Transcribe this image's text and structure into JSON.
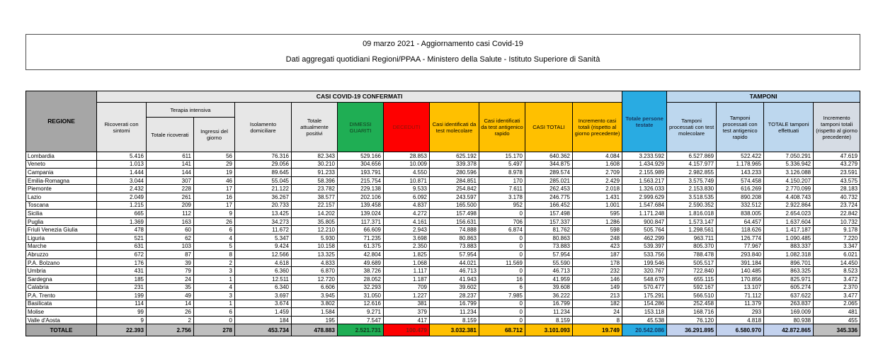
{
  "title": {
    "line1": "09 marzo 2021 - Aggiornamento casi Covid-19",
    "line2": "Dati aggregati quotidiani Regioni/PPAA - Ministero della Salute - Istituto Superiore di Sanità"
  },
  "colors": {
    "header_gray": "#a6a6a6",
    "header_light_gray": "#e7e7e7",
    "green": "#1fae54",
    "red": "#fe0000",
    "yellow": "#ffc000",
    "cyan": "#29abe2",
    "light_blue": "#bdd7ee",
    "gray_blue": "#d6dce4",
    "total_silver": "#bfbfbf"
  },
  "table": {
    "region_header": "REGIONE",
    "groups": {
      "confermati": "CASI COVID-19 CONFERMATI",
      "tamponi": "TAMPONI"
    },
    "headers": {
      "ricoverati": "Ricoverati con sintomi",
      "terapia_intensiva": "Terapia intensiva",
      "totale_ricoverati": "Totale ricoverati",
      "ingressi_giorno": "Ingressi del giorno",
      "isolamento": "Isolamento domiciliare",
      "attualmente_positivi": "Totale attualmente positivi",
      "dimessi_guariti": "DIMESSI GUARITI",
      "deceduti": "DECEDUTI",
      "casi_molecolare": "Casi identificati da test molecolare",
      "casi_antigenico": "Casi identificati da test antigenico rapido",
      "casi_totali": "CASI TOTALI",
      "incremento_casi": "Incremento casi totali (rispetto al giorno precedente)",
      "persone_testate": "Totale persone testate",
      "tamponi_molecolare": "Tamponi processati con test molecolare",
      "tamponi_antigenico": "Tamponi processati con test antigenico rapido",
      "totale_tamponi": "TOTALE tamponi effettuati",
      "incremento_tamponi": "Incremento tamponi totali (rispetto al giorno precedente)"
    },
    "column_keys": [
      "ricoverati-con-sintomi",
      "terapia-totale-ricoverati",
      "terapia-ingressi-giorno",
      "isolamento-domiciliare",
      "totale-attualmente-positivi",
      "dimessi-guariti",
      "deceduti",
      "casi-test-molecolare",
      "casi-test-antigenico",
      "casi-totali",
      "incremento-casi-totali",
      "totale-persone-testate",
      "tamponi-test-molecolare",
      "tamponi-test-antigenico",
      "totale-tamponi-effettuati",
      "incremento-tamponi-totali"
    ],
    "rows": [
      {
        "region": "Lombardia",
        "values": [
          "5.416",
          "611",
          "56",
          "76.316",
          "82.343",
          "529.166",
          "28.853",
          "625.192",
          "15.170",
          "640.362",
          "4.084",
          "3.233.592",
          "6.527.869",
          "522.422",
          "7.050.291",
          "47.619"
        ]
      },
      {
        "region": "Veneto",
        "values": [
          "1.013",
          "141",
          "29",
          "29.056",
          "30.210",
          "304.656",
          "10.009",
          "339.378",
          "5.497",
          "344.875",
          "1.608",
          "1.434.929",
          "4.157.977",
          "1.178.965",
          "5.336.942",
          "43.279"
        ]
      },
      {
        "region": "Campania",
        "values": [
          "1.444",
          "144",
          "19",
          "89.645",
          "91.233",
          "193.791",
          "4.550",
          "280.596",
          "8.978",
          "289.574",
          "2.709",
          "2.155.989",
          "2.982.855",
          "143.233",
          "3.126.088",
          "23.591"
        ]
      },
      {
        "region": "Emilia-Romagna",
        "values": [
          "3.044",
          "307",
          "46",
          "55.045",
          "58.396",
          "215.754",
          "10.871",
          "284.851",
          "170",
          "285.021",
          "2.429",
          "1.563.217",
          "3.575.749",
          "574.458",
          "4.150.207",
          "43.575"
        ]
      },
      {
        "region": "Piemonte",
        "values": [
          "2.432",
          "228",
          "17",
          "21.122",
          "23.782",
          "229.138",
          "9.533",
          "254.842",
          "7.611",
          "262.453",
          "2.018",
          "1.326.033",
          "2.153.830",
          "616.269",
          "2.770.099",
          "28.183"
        ]
      },
      {
        "region": "Lazio",
        "values": [
          "2.049",
          "261",
          "16",
          "36.267",
          "38.577",
          "202.106",
          "6.092",
          "243.597",
          "3.178",
          "246.775",
          "1.431",
          "2.999.629",
          "3.518.535",
          "890.208",
          "4.408.743",
          "40.732"
        ]
      },
      {
        "region": "Toscana",
        "values": [
          "1.215",
          "209",
          "17",
          "20.733",
          "22.157",
          "139.458",
          "4.837",
          "165.500",
          "952",
          "166.452",
          "1.001",
          "1.547.684",
          "2.590.352",
          "332.512",
          "2.922.864",
          "23.724"
        ]
      },
      {
        "region": "Sicilia",
        "values": [
          "665",
          "112",
          "9",
          "13.425",
          "14.202",
          "139.024",
          "4.272",
          "157.498",
          "0",
          "157.498",
          "595",
          "1.171.248",
          "1.816.018",
          "838.005",
          "2.654.023",
          "22.842"
        ]
      },
      {
        "region": "Puglia",
        "values": [
          "1.369",
          "163",
          "26",
          "34.273",
          "35.805",
          "117.371",
          "4.161",
          "156.631",
          "706",
          "157.337",
          "1.286",
          "900.847",
          "1.573.147",
          "64.457",
          "1.637.604",
          "10.732"
        ]
      },
      {
        "region": "Friuli Venezia Giulia",
        "values": [
          "478",
          "60",
          "6",
          "11.672",
          "12.210",
          "66.609",
          "2.943",
          "74.888",
          "6.874",
          "81.762",
          "598",
          "505.764",
          "1.298.561",
          "118.626",
          "1.417.187",
          "9.178"
        ]
      },
      {
        "region": "Liguria",
        "values": [
          "521",
          "62",
          "4",
          "5.347",
          "5.930",
          "71.235",
          "3.698",
          "80.863",
          "0",
          "80.863",
          "248",
          "462.299",
          "963.711",
          "126.774",
          "1.090.485",
          "7.220"
        ]
      },
      {
        "region": "Marche",
        "values": [
          "631",
          "103",
          "5",
          "9.424",
          "10.158",
          "61.375",
          "2.350",
          "73.883",
          "0",
          "73.883",
          "423",
          "539.397",
          "805.370",
          "77.967",
          "883.337",
          "3.347"
        ]
      },
      {
        "region": "Abruzzo",
        "values": [
          "672",
          "87",
          "8",
          "12.566",
          "13.325",
          "42.804",
          "1.825",
          "57.954",
          "0",
          "57.954",
          "187",
          "533.756",
          "788.478",
          "293.840",
          "1.082.318",
          "6.021"
        ]
      },
      {
        "region": "P.A. Bolzano",
        "values": [
          "176",
          "39",
          "2",
          "4.618",
          "4.833",
          "49.689",
          "1.068",
          "44.021",
          "11.569",
          "55.590",
          "178",
          "199.546",
          "505.517",
          "391.184",
          "896.701",
          "14.450"
        ]
      },
      {
        "region": "Umbria",
        "values": [
          "431",
          "79",
          "3",
          "6.360",
          "6.870",
          "38.726",
          "1.117",
          "46.713",
          "0",
          "46.713",
          "232",
          "320.767",
          "722.840",
          "140.485",
          "863.325",
          "8.523"
        ]
      },
      {
        "region": "Sardegna",
        "values": [
          "185",
          "24",
          "1",
          "12.511",
          "12.720",
          "28.052",
          "1.187",
          "41.943",
          "16",
          "41.959",
          "146",
          "548.679",
          "655.115",
          "170.856",
          "825.971",
          "3.472"
        ]
      },
      {
        "region": "Calabria",
        "values": [
          "231",
          "35",
          "4",
          "6.340",
          "6.606",
          "32.293",
          "709",
          "39.602",
          "6",
          "39.608",
          "149",
          "570.477",
          "592.167",
          "13.107",
          "605.274",
          "2.370"
        ]
      },
      {
        "region": "P.A. Trento",
        "values": [
          "199",
          "49",
          "3",
          "3.697",
          "3.945",
          "31.050",
          "1.227",
          "28.237",
          "7.985",
          "36.222",
          "213",
          "175.291",
          "566.510",
          "71.112",
          "637.622",
          "3.477"
        ]
      },
      {
        "region": "Basilicata",
        "values": [
          "114",
          "14",
          "1",
          "3.674",
          "3.802",
          "12.616",
          "381",
          "16.799",
          "0",
          "16.799",
          "182",
          "154.286",
          "252.458",
          "11.379",
          "263.837",
          "2.065"
        ]
      },
      {
        "region": "Molise",
        "values": [
          "99",
          "26",
          "6",
          "1.459",
          "1.584",
          "9.271",
          "379",
          "11.234",
          "0",
          "11.234",
          "24",
          "153.118",
          "168.716",
          "293",
          "169.009",
          "481"
        ]
      },
      {
        "region": "Valle d'Aosta",
        "values": [
          "9",
          "2",
          "0",
          "184",
          "195",
          "7.547",
          "417",
          "8.159",
          "0",
          "8.159",
          "8",
          "45.538",
          "76.120",
          "4.818",
          "80.938",
          "455"
        ]
      }
    ],
    "total": {
      "label": "TOTALE",
      "values": [
        "22.393",
        "2.756",
        "278",
        "453.734",
        "478.883",
        "2.521.731",
        "100.479",
        "3.032.381",
        "68.712",
        "3.101.093",
        "19.749",
        "20.542.086",
        "36.291.895",
        "6.580.970",
        "42.872.865",
        "345.336"
      ]
    }
  }
}
